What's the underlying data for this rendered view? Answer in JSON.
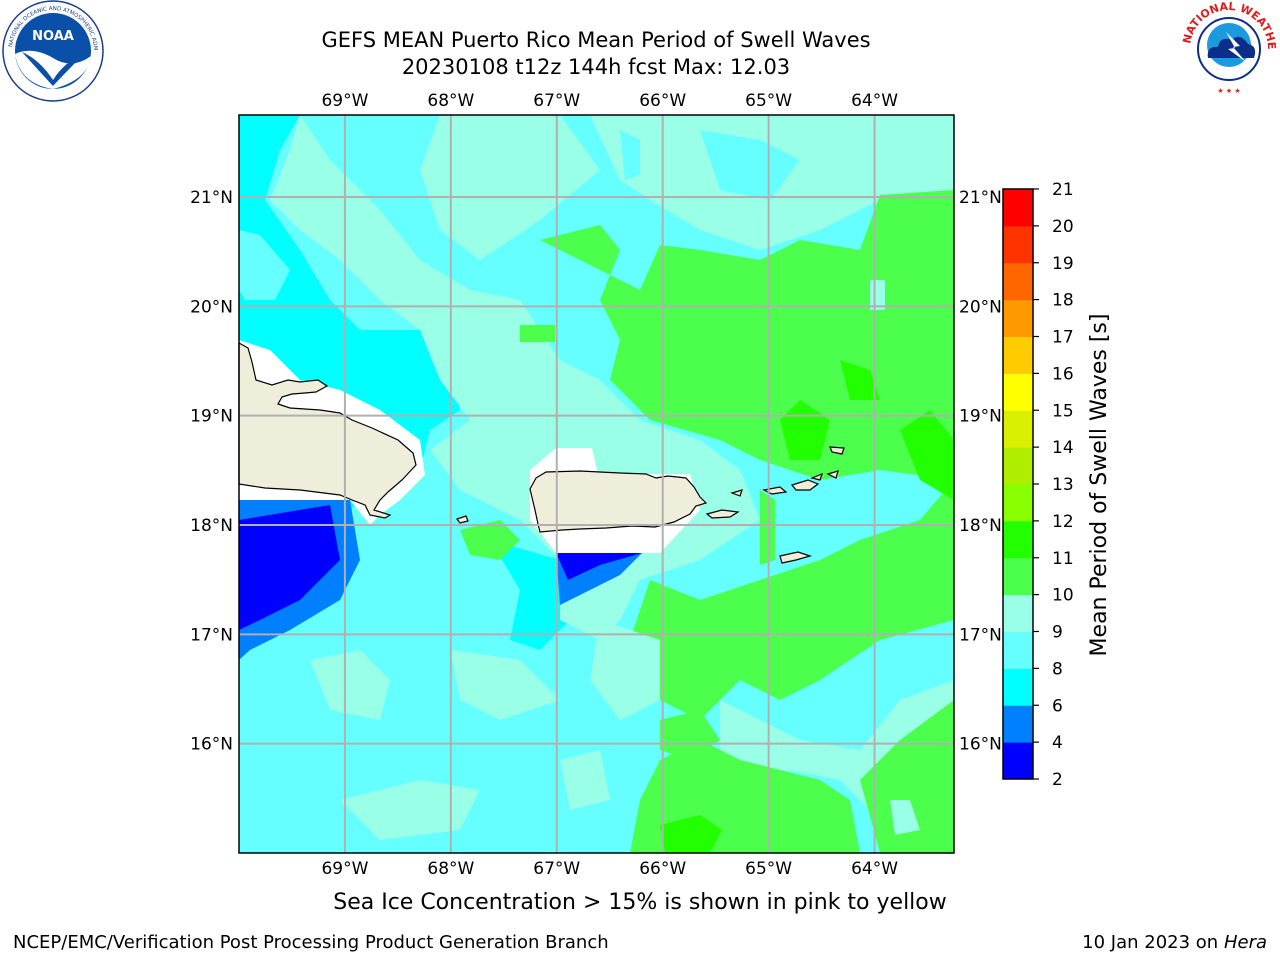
{
  "title": {
    "line1": "GEFS MEAN Puerto Rico Mean Period of Swell Waves",
    "line2": "20230108 t12z 144h fcst   Max: 12.03"
  },
  "logos": {
    "left": "noaa-logo",
    "right": "nws-logo"
  },
  "footnote": "Sea Ice Concentration > 15% is shown in pink to yellow",
  "footer": {
    "left": "NCEP/EMC/Verification Post Processing Product Generation Branch",
    "right_date": "10 Jan 2023 on ",
    "right_machine": "Hera"
  },
  "map": {
    "lon_labels": [
      "69°W",
      "68°W",
      "67°W",
      "66°W",
      "65°W",
      "64°W"
    ],
    "lat_labels": [
      "21°N",
      "20°N",
      "19°N",
      "18°N",
      "17°N",
      "16°N"
    ],
    "lon_values": [
      -69,
      -68,
      -67,
      -66,
      -65,
      -64
    ],
    "lat_values": [
      21,
      20,
      19,
      18,
      17,
      16
    ],
    "extent": {
      "lon_min": -70,
      "lon_max": -63.25,
      "lat_min": 15,
      "lat_max": 21.75
    },
    "grid": true
  },
  "colorbar": {
    "label": "Mean Period of Swell Waves [s]",
    "ticks": [
      "2",
      "4",
      "6",
      "8",
      "9",
      "10",
      "11",
      "12",
      "13",
      "14",
      "15",
      "16",
      "17",
      "18",
      "19",
      "20",
      "21"
    ],
    "colors": [
      "#0000ff",
      "#0080ff",
      "#00ffff",
      "#66ffff",
      "#99ffe6",
      "#4dff4d",
      "#22ff00",
      "#88ff00",
      "#b0ee00",
      "#d9f000",
      "#ffff00",
      "#ffcc00",
      "#ff9900",
      "#ff6600",
      "#ff3300",
      "#ff0000"
    ]
  },
  "palette": {
    "land": "#efeedb",
    "undefined": "#ffffff"
  }
}
